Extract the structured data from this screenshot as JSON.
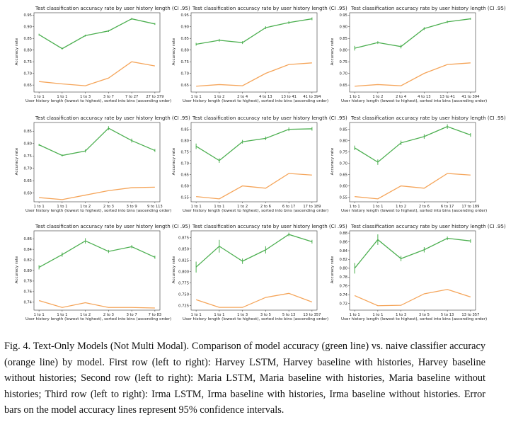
{
  "caption": "Fig. 4. Text-Only Models (Not Multi Modal). Comparison of model accuracy (green line) vs. naive classifier accuracy (orange line) by model. First row (left to right): Harvey LSTM, Harvey baseline with histories, Harvey baseline without histories; Second row (left to right): Maria LSTM, Maria baseline with histories, Maria baseline without histories; Third row (left to right): Irma LSTM, Irma baseline with histories, Irma baseline without histories. Error bars on the model accuracy lines represent 95% confidence intervals.",
  "colors": {
    "model": "#4caf50",
    "naive": "#f5a55a"
  },
  "chart_data": [
    {
      "type": "line",
      "title": "Test classification accuracy rate by user history length (CI .95)",
      "xlabel": "User history length (lowest to highest), sorted into bins (ascending order)",
      "ylabel": "Accuracy rate",
      "categories": [
        "1 to 1",
        "1 to 1",
        "1 to 3",
        "3 to 7",
        "7 to 27",
        "27 to 379"
      ],
      "ylim": [
        0.62,
        0.96
      ],
      "yticks": [
        "0.65",
        "0.70",
        "0.75",
        "0.80",
        "0.85",
        "0.90",
        "0.95"
      ],
      "series": [
        {
          "values": [
            0.866,
            0.806,
            0.862,
            0.882,
            0.934,
            0.912
          ],
          "err": [
            0.004,
            0.004,
            0.004,
            0.004,
            0.004,
            0.004
          ]
        },
        {
          "values": [
            0.665,
            0.655,
            0.647,
            0.68,
            0.75,
            0.732
          ]
        }
      ]
    },
    {
      "type": "line",
      "title": "Test classification accuracy rate by user history length (CI .95)",
      "xlabel": "User history length (lowest to highest), sorted into bins (ascending order)",
      "ylabel": "Accuracy rate",
      "categories": [
        "1 to 1",
        "1 to 2",
        "2 to 4",
        "4 to 13",
        "13 to 41",
        "41 to 394"
      ],
      "ylim": [
        0.62,
        0.96
      ],
      "yticks": [
        "0.65",
        "0.70",
        "0.75",
        "0.80",
        "0.85",
        "0.90",
        "0.95"
      ],
      "series": [
        {
          "values": [
            0.825,
            0.842,
            0.832,
            0.896,
            0.918,
            0.934
          ],
          "err": [
            0.006,
            0.006,
            0.006,
            0.006,
            0.006,
            0.006
          ]
        },
        {
          "values": [
            0.645,
            0.652,
            0.647,
            0.7,
            0.738,
            0.745
          ]
        }
      ]
    },
    {
      "type": "line",
      "title": "Test classification accuracy rate by user history length (CI .95)",
      "xlabel": "User history length (lowest to highest), sorted into bins (ascending order)",
      "ylabel": "Accuracy rate",
      "categories": [
        "1 to 1",
        "1 to 2",
        "2 to 4",
        "4 to 13",
        "13 to 41",
        "41 to 394"
      ],
      "ylim": [
        0.62,
        0.96
      ],
      "yticks": [
        "0.65",
        "0.70",
        "0.75",
        "0.80",
        "0.85",
        "0.90",
        "0.95"
      ],
      "series": [
        {
          "values": [
            0.808,
            0.832,
            0.815,
            0.892,
            0.921,
            0.934
          ],
          "err": [
            0.01,
            0.006,
            0.008,
            0.006,
            0.005,
            0.004
          ]
        },
        {
          "values": [
            0.645,
            0.652,
            0.647,
            0.7,
            0.738,
            0.745
          ]
        }
      ]
    },
    {
      "type": "line",
      "title": "Test classification accuracy rate by user history length (CI .95)",
      "xlabel": "User history length (lowest to highest), sorted into bins (ascending order)",
      "ylabel": "Accuracy rate",
      "categories": [
        "1 to 1",
        "1 to 1",
        "1 to 2",
        "2 to 3",
        "3 to 9",
        "9 to 113"
      ],
      "ylim": [
        0.565,
        0.885
      ],
      "yticks": [
        "0.60",
        "0.65",
        "0.70",
        "0.75",
        "0.80",
        "0.85"
      ],
      "series": [
        {
          "values": [
            0.795,
            0.752,
            0.77,
            0.862,
            0.812,
            0.772
          ],
          "err": [
            0.004,
            0.004,
            0.006,
            0.008,
            0.008,
            0.006
          ]
        },
        {
          "values": [
            0.582,
            0.574,
            0.592,
            0.61,
            0.622,
            0.624
          ]
        }
      ]
    },
    {
      "type": "line",
      "title": "Test classification accuracy rate by user history length (CI .95)",
      "xlabel": "User history length (lowest to highest), sorted into bins (ascending order)",
      "ylabel": "Accuracy rate",
      "categories": [
        "1 to 1",
        "1 to 1",
        "1 to 2",
        "2 to 6",
        "6 to 17",
        "17 to 189"
      ],
      "ylim": [
        0.53,
        0.88
      ],
      "yticks": [
        "0.55",
        "0.60",
        "0.65",
        "0.70",
        "0.75",
        "0.80",
        "0.85"
      ],
      "series": [
        {
          "values": [
            0.775,
            0.712,
            0.795,
            0.81,
            0.85,
            0.852
          ],
          "err": [
            0.012,
            0.01,
            0.008,
            0.008,
            0.008,
            0.008
          ]
        },
        {
          "values": [
            0.553,
            0.543,
            0.6,
            0.59,
            0.655,
            0.648
          ]
        }
      ]
    },
    {
      "type": "line",
      "title": "Test classification accuracy rate by user history length (CI .95)",
      "xlabel": "User history length (lowest to highest), sorted into bins (ascending order)",
      "ylabel": "Accuracy rate",
      "categories": [
        "1 to 1",
        "1 to 1",
        "1 to 2",
        "2 to 6",
        "6 to 17",
        "17 to 189"
      ],
      "ylim": [
        0.53,
        0.88
      ],
      "yticks": [
        "0.55",
        "0.60",
        "0.65",
        "0.70",
        "0.75",
        "0.80",
        "0.85"
      ],
      "series": [
        {
          "values": [
            0.768,
            0.705,
            0.79,
            0.818,
            0.862,
            0.825
          ],
          "err": [
            0.01,
            0.012,
            0.01,
            0.01,
            0.01,
            0.008
          ]
        },
        {
          "values": [
            0.553,
            0.543,
            0.6,
            0.59,
            0.655,
            0.648
          ]
        }
      ]
    },
    {
      "type": "line",
      "title": "Test classification accuracy rate by user history length (CI .95)",
      "xlabel": "User history length (lowest to highest), sorted into bins (ascending order)",
      "ylabel": "Accuracy rate",
      "categories": [
        "1 to 1",
        "1 to 1",
        "1 to 2",
        "2 to 3",
        "3 to 7",
        "7 to 83"
      ],
      "ylim": [
        0.725,
        0.875
      ],
      "yticks": [
        "0.74",
        "0.76",
        "0.78",
        "0.80",
        "0.82",
        "0.84",
        "0.86"
      ],
      "series": [
        {
          "values": [
            0.806,
            0.83,
            0.856,
            0.836,
            0.845,
            0.825
          ],
          "err": [
            0.004,
            0.004,
            0.005,
            0.003,
            0.003,
            0.003
          ]
        },
        {
          "values": [
            0.743,
            0.73,
            0.739,
            0.73,
            0.73,
            0.729
          ]
        }
      ]
    },
    {
      "type": "line",
      "title": "Test classification accuracy rate by user history length (CI .95)",
      "xlabel": "User history length (lowest to highest), sorted into bins (ascending order)",
      "ylabel": "Accuracy rate",
      "categories": [
        "1 to 1",
        "1 to 1",
        "1 to 3",
        "3 to 5",
        "5 to 13",
        "13 to 357"
      ],
      "ylim": [
        0.715,
        0.89
      ],
      "yticks": [
        "0.725",
        "0.750",
        "0.775",
        "0.800",
        "0.825",
        "0.850",
        "0.875"
      ],
      "series": [
        {
          "values": [
            0.81,
            0.856,
            0.823,
            0.848,
            0.882,
            0.866
          ],
          "err": [
            0.012,
            0.014,
            0.006,
            0.008,
            0.004,
            0.004
          ]
        },
        {
          "values": [
            0.738,
            0.721,
            0.721,
            0.743,
            0.752,
            0.733
          ]
        }
      ]
    },
    {
      "type": "line",
      "title": "Test classification accuracy rate by user history length (CI .95)",
      "xlabel": "User history length (lowest to highest), sorted into bins (ascending order)",
      "ylabel": "Accuracy rate",
      "categories": [
        "1 to 1",
        "1 to 1",
        "1 to 3",
        "3 to 5",
        "5 to 13",
        "13 to 357"
      ],
      "ylim": [
        0.705,
        0.885
      ],
      "yticks": [
        "0.72",
        "0.74",
        "0.76",
        "0.78",
        "0.80",
        "0.82",
        "0.84",
        "0.86",
        "0.88"
      ],
      "series": [
        {
          "values": [
            0.8,
            0.865,
            0.822,
            0.842,
            0.868,
            0.862
          ],
          "err": [
            0.012,
            0.012,
            0.006,
            0.006,
            0.004,
            0.004
          ]
        },
        {
          "values": [
            0.738,
            0.715,
            0.716,
            0.742,
            0.752,
            0.735
          ]
        }
      ]
    }
  ]
}
